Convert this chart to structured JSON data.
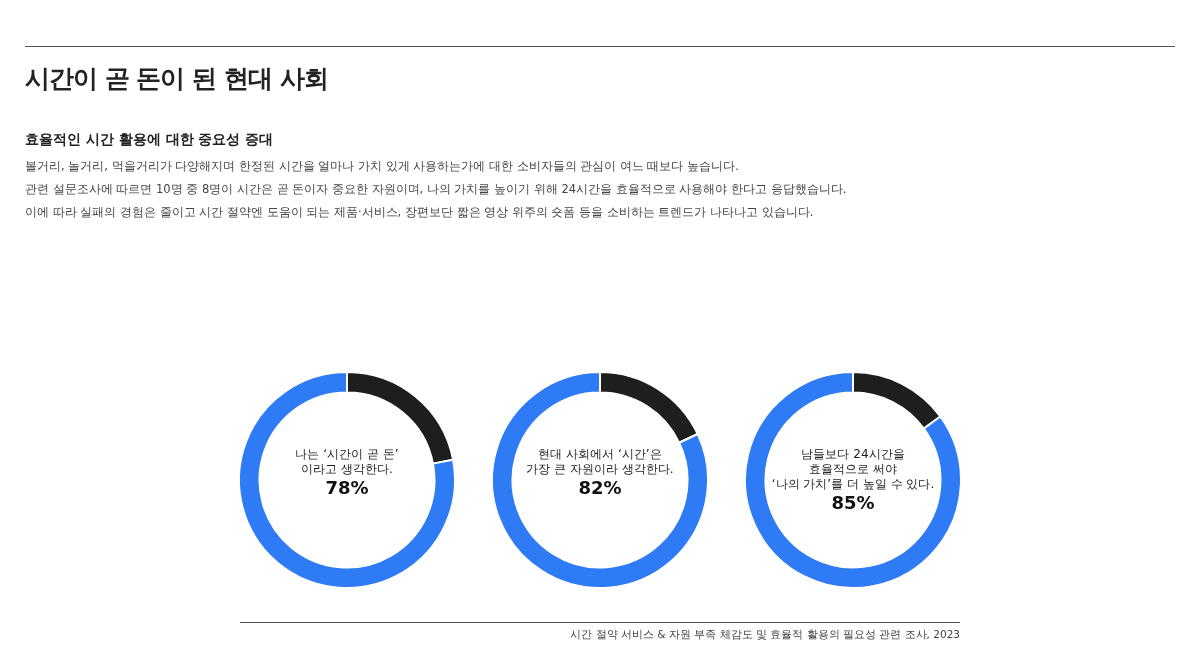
{
  "chart_data": [
    {
      "type": "other",
      "title": "시간이 곧 돈이 된 현대 사회",
      "subtitle": "효율적인 시간 활용에 대한 중요성 증대",
      "annotations": [
        "볼거리, 놀거리, 먹을거리가 다양해지며 한정된 시간을 얼마나 가치 있게 사용하는가에 대한 소비자들의 관심이 여느 때보다 높습니다.",
        "관련 설문조사에 따르면 10명 중 8명이 시간은 곧 돈이자 중요한 자원이며, 나의 가치를 높이기 위해 24시간을 효율적으로 사용해야 한다고 응답했습니다.",
        "이에 따라 실패의 경험은 줄이고 시간 절약엔 도움이 되는 제품·서비스, 장편보단 짧은 영상 위주의 숏폼 등을 소비하는 트렌드가 나타나고 있습니다.",
        "시간 절약 서비스 & 자원 부족 체감도 및 효율적 활용의 필요성 관련 조사, 2023"
      ]
    },
    {
      "type": "donut",
      "title": "나는 ‘시간이 곧 돈’\n이라고 생각한다.",
      "categories": [
        null,
        null
      ],
      "values": [
        22,
        78
      ],
      "colors": [
        "#1e1e1e",
        "#2f7bf5"
      ],
      "value_labels": [
        null,
        "78%"
      ]
    },
    {
      "type": "donut",
      "title": "현대 사회에서 ‘시간’은\n가장 큰 자원이라 생각한다.",
      "categories": [
        null,
        null
      ],
      "values": [
        18,
        82
      ],
      "colors": [
        "#1e1e1e",
        "#2f7bf5"
      ],
      "value_labels": [
        null,
        "82%"
      ]
    },
    {
      "type": "donut",
      "title": "남들보다 24시간을\n효율적으로 써야\n‘나의 가치’를 더 높일 수 있다.",
      "categories": [
        null,
        null
      ],
      "values": [
        15,
        85
      ],
      "colors": [
        "#1e1e1e",
        "#2f7bf5"
      ],
      "value_labels": [
        null,
        "85%"
      ]
    }
  ]
}
